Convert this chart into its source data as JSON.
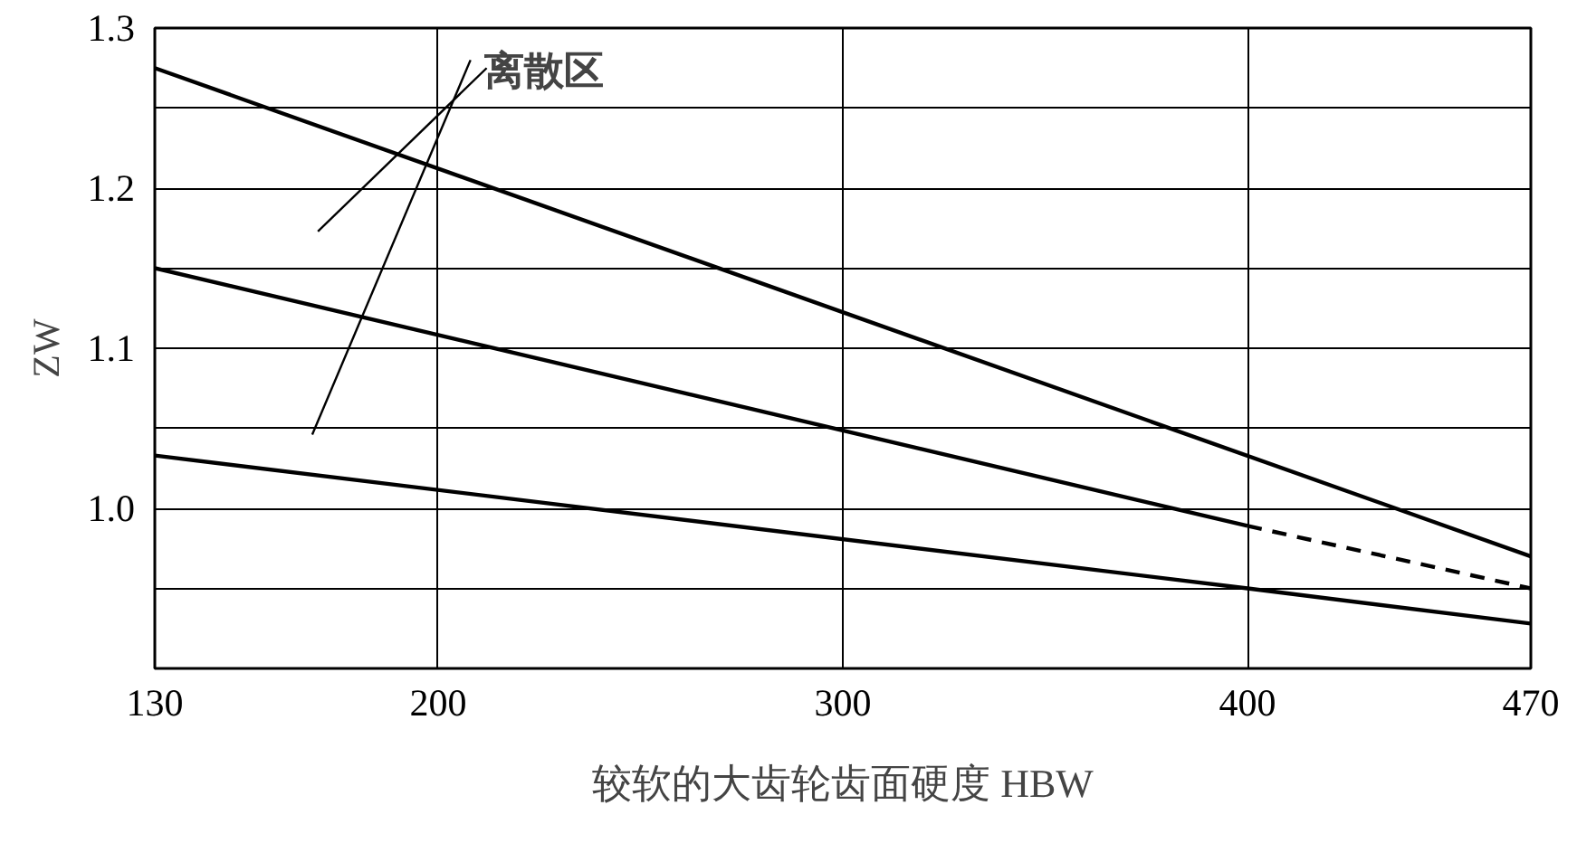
{
  "chart_data": {
    "type": "line",
    "xlabel": "较软的大齿轮齿面硬度 HBW",
    "ylabel": "ZW",
    "annotations": [
      "离散区"
    ],
    "xlim": [
      130,
      470
    ],
    "ylim": [
      0.9,
      1.3
    ],
    "xticks": [
      130,
      200,
      300,
      400,
      470
    ],
    "yticks": [
      {
        "value": 0.95,
        "label": null
      },
      {
        "value": 1.0,
        "label": "1.0"
      },
      {
        "value": 1.05,
        "label": null
      },
      {
        "value": 1.1,
        "label": "1.1"
      },
      {
        "value": 1.15,
        "label": null
      },
      {
        "value": 1.2,
        "label": "1.2"
      },
      {
        "value": 1.25,
        "label": null
      },
      {
        "value": 1.3,
        "label": "1.3"
      }
    ],
    "grid": true,
    "marker": "none",
    "series": [
      {
        "color": "#000000",
        "x": [
          130,
          470
        ],
        "values": [
          1.275,
          0.97
        ]
      },
      {
        "color": "#000000",
        "x": [
          130,
          400
        ],
        "values": [
          1.15,
          0.989
        ]
      },
      {
        "color": "#000000",
        "x": [
          400,
          470
        ],
        "values": [
          0.989,
          0.95
        ],
        "line_style": "dashed"
      },
      {
        "color": "#000000",
        "x": [
          130,
          400,
          470
        ],
        "values": [
          1.033,
          0.95,
          0.928
        ]
      }
    ]
  }
}
